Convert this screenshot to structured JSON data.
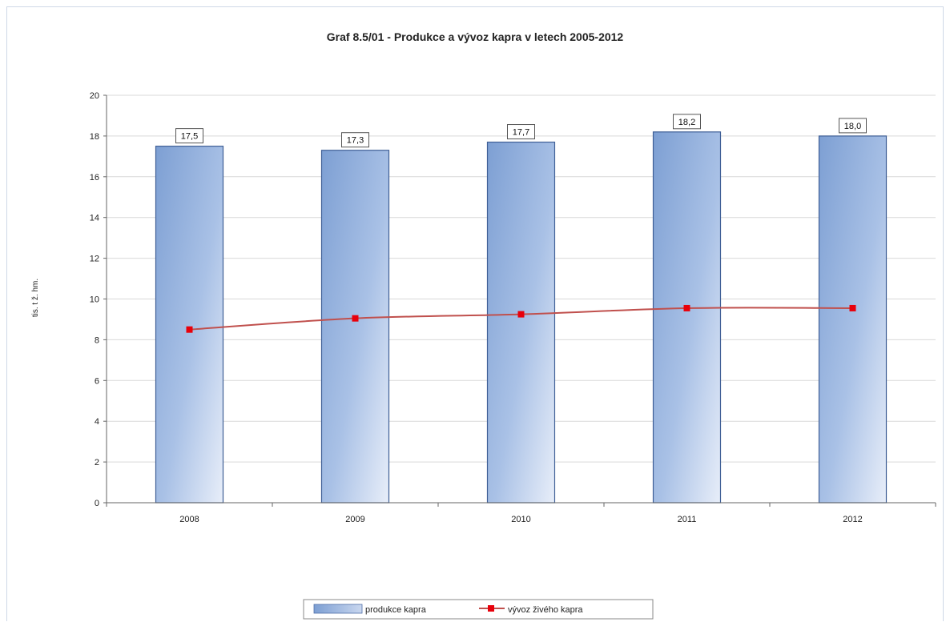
{
  "chart_data": {
    "type": "bar",
    "title": "Graf 8.5/01 - Produkce a vývoz kapra v letech 2005-2012",
    "xlabel": "",
    "ylabel": "tis. t ž. hm.",
    "ylim": [
      0,
      20
    ],
    "yticks": [
      0,
      2,
      4,
      6,
      8,
      10,
      12,
      14,
      16,
      18,
      20
    ],
    "categories": [
      "2008",
      "2009",
      "2010",
      "2011",
      "2012"
    ],
    "grid": true,
    "legend_position": "bottom",
    "series": [
      {
        "name": "produkce kapra",
        "type": "bar",
        "values": [
          17.5,
          17.3,
          17.7,
          18.2,
          18.0
        ],
        "data_labels": [
          "17,5",
          "17,3",
          "17,7",
          "18,2",
          "18,0"
        ],
        "color": "#8eaadb"
      },
      {
        "name": "vývoz živého kapra",
        "type": "line",
        "values": [
          8.5,
          9.05,
          9.25,
          9.55,
          9.55
        ],
        "line_color": "#c0504d",
        "marker_color": "#e8000b"
      }
    ]
  }
}
